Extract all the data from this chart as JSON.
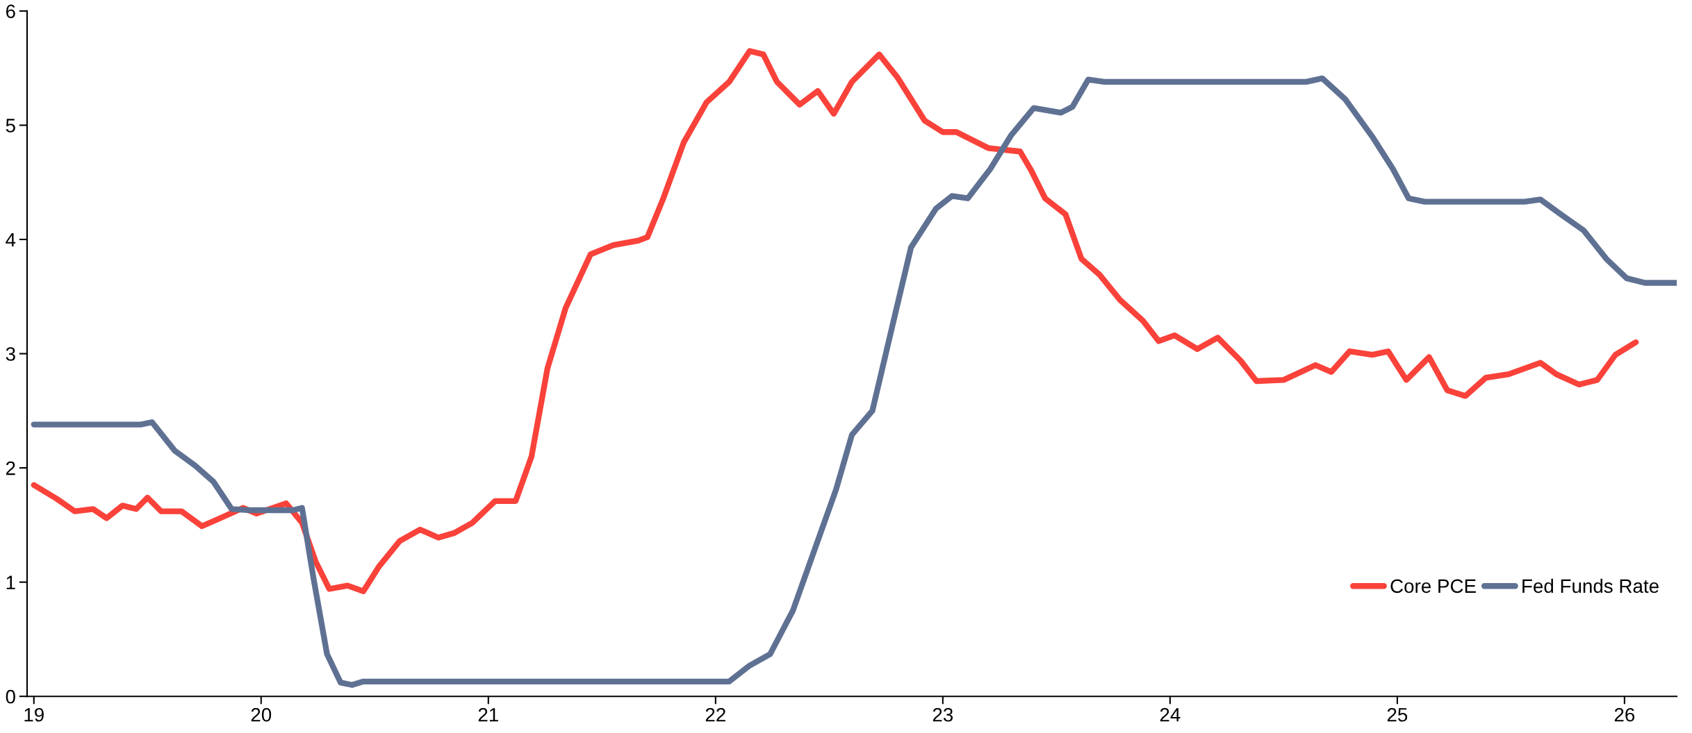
{
  "chart_data": {
    "type": "line",
    "xlim": [
      18.97,
      26.23
    ],
    "ylim": [
      0,
      6
    ],
    "xticks": [
      19,
      20,
      21,
      22,
      23,
      24,
      25,
      26
    ],
    "yticks": [
      0,
      1,
      2,
      3,
      4,
      5,
      6
    ],
    "grid": false,
    "legend": "bottom right",
    "marker": "none",
    "line_style": "solid",
    "series": [
      {
        "name": "Core PCE",
        "color": "#f9423a",
        "x": [
          19.0,
          19.1,
          19.18,
          19.26,
          19.32,
          19.39,
          19.45,
          19.5,
          19.56,
          19.65,
          19.74,
          19.82,
          19.92,
          19.98,
          20.11,
          20.18,
          20.24,
          20.3,
          20.38,
          20.45,
          20.52,
          20.61,
          20.7,
          20.78,
          20.85,
          20.93,
          21.03,
          21.12,
          21.19,
          21.26,
          21.34,
          21.45,
          21.55,
          21.66,
          21.7,
          21.77,
          21.86,
          21.96,
          22.06,
          22.15,
          22.21,
          22.27,
          22.37,
          22.45,
          22.52,
          22.6,
          22.72,
          22.8,
          22.92,
          23.0,
          23.06,
          23.2,
          23.34,
          23.39,
          23.45,
          23.54,
          23.61,
          23.69,
          23.78,
          23.88,
          23.95,
          24.02,
          24.12,
          24.21,
          24.31,
          24.38,
          24.5,
          24.64,
          24.71,
          24.79,
          24.89,
          24.96,
          25.04,
          25.14,
          25.22,
          25.3,
          25.39,
          25.49,
          25.63,
          25.7,
          25.8,
          25.88,
          25.96,
          26.05
        ],
        "values": [
          1.85,
          1.73,
          1.62,
          1.64,
          1.56,
          1.67,
          1.64,
          1.74,
          1.62,
          1.62,
          1.49,
          1.56,
          1.65,
          1.6,
          1.69,
          1.52,
          1.18,
          0.94,
          0.97,
          0.92,
          1.14,
          1.36,
          1.46,
          1.39,
          1.43,
          1.52,
          1.71,
          1.71,
          2.1,
          2.87,
          3.4,
          3.87,
          3.95,
          3.99,
          4.02,
          4.36,
          4.85,
          5.2,
          5.38,
          5.65,
          5.62,
          5.38,
          5.18,
          5.3,
          5.1,
          5.38,
          5.62,
          5.42,
          5.04,
          4.94,
          4.94,
          4.8,
          4.77,
          4.6,
          4.36,
          4.22,
          3.83,
          3.69,
          3.47,
          3.29,
          3.11,
          3.16,
          3.04,
          3.14,
          2.94,
          2.76,
          2.77,
          2.9,
          2.84,
          3.02,
          2.99,
          3.02,
          2.77,
          2.97,
          2.68,
          2.63,
          2.79,
          2.82,
          2.92,
          2.82,
          2.73,
          2.77,
          2.99,
          3.1
        ]
      },
      {
        "name": "Fed Funds Rate",
        "color": "#5f7193",
        "x": [
          19.0,
          19.47,
          19.52,
          19.62,
          19.71,
          19.79,
          19.87,
          19.94,
          20.14,
          20.18,
          20.23,
          20.29,
          20.35,
          20.4,
          20.45,
          22.01,
          22.06,
          22.15,
          22.24,
          22.34,
          22.53,
          22.6,
          22.69,
          22.78,
          22.86,
          22.97,
          23.04,
          23.11,
          23.21,
          23.3,
          23.4,
          23.52,
          23.57,
          23.64,
          23.71,
          24.6,
          24.67,
          24.77,
          24.89,
          24.98,
          25.05,
          25.12,
          25.56,
          25.63,
          25.72,
          25.82,
          25.92,
          26.01,
          26.09,
          26.23
        ],
        "values": [
          2.38,
          2.38,
          2.4,
          2.15,
          2.02,
          1.88,
          1.64,
          1.63,
          1.63,
          1.65,
          1.04,
          0.37,
          0.12,
          0.1,
          0.13,
          0.13,
          0.13,
          0.27,
          0.37,
          0.75,
          1.81,
          2.29,
          2.5,
          3.26,
          3.93,
          4.27,
          4.38,
          4.36,
          4.62,
          4.91,
          5.15,
          5.11,
          5.16,
          5.4,
          5.38,
          5.38,
          5.41,
          5.23,
          4.9,
          4.62,
          4.36,
          4.33,
          4.33,
          4.35,
          4.22,
          4.08,
          3.83,
          3.66,
          3.62,
          3.62
        ]
      }
    ]
  }
}
